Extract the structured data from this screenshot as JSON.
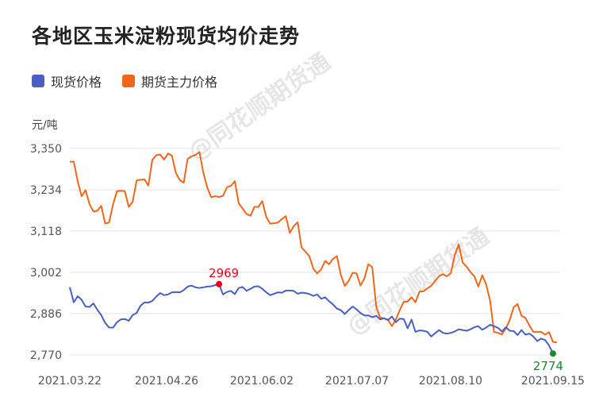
{
  "title": "各地区玉米淀粉现货均价走势",
  "unit_label": "元/吨",
  "watermark": "@同花顺期货通",
  "colors": {
    "spot": "#4a5fc1",
    "futures": "#f0661a",
    "max_marker": "#e8001c",
    "min_marker": "#1a8a2e"
  },
  "chart_data": {
    "type": "line",
    "legend": "top-left",
    "grid": true,
    "ylim": [
      2770,
      3350
    ],
    "y_ticks": [
      "3,350",
      "3,234",
      "3,118",
      "3,002",
      "2,886",
      "2,770"
    ],
    "x_ticks": [
      "2021.03.22",
      "2021.04.26",
      "2021.06.02",
      "2021.07.07",
      "2021.08.10",
      "2021.09.15"
    ],
    "annotations": [
      {
        "series": "现货价格",
        "index": 38,
        "label": "2969"
      },
      {
        "series": "现货价格",
        "index": 123,
        "label": "2774"
      }
    ],
    "series": [
      {
        "name": "现货价格",
        "color": "#4a5fc1",
        "values": [
          2960,
          2918,
          2935,
          2925,
          2906,
          2905,
          2915,
          2897,
          2882,
          2860,
          2847,
          2847,
          2862,
          2870,
          2871,
          2866,
          2882,
          2888,
          2908,
          2918,
          2917,
          2922,
          2934,
          2944,
          2938,
          2940,
          2946,
          2947,
          2946,
          2952,
          2962,
          2965,
          2960,
          2958,
          2960,
          2962,
          2963,
          2966,
          2969,
          2940,
          2947,
          2950,
          2941,
          2958,
          2961,
          2950,
          2956,
          2962,
          2963,
          2956,
          2946,
          2938,
          2942,
          2946,
          2945,
          2951,
          2951,
          2950,
          2942,
          2945,
          2944,
          2941,
          2936,
          2940,
          2928,
          2932,
          2921,
          2912,
          2900,
          2896,
          2885,
          2896,
          2906,
          2898,
          2888,
          2881,
          2881,
          2876,
          2880,
          2870,
          2873,
          2868,
          2878,
          2862,
          2872,
          2871,
          2845,
          2869,
          2835,
          2839,
          2838,
          2835,
          2822,
          2831,
          2840,
          2832,
          2830,
          2832,
          2836,
          2842,
          2840,
          2838,
          2842,
          2848,
          2851,
          2841,
          2847,
          2855,
          2851,
          2846,
          2836,
          2848,
          2838,
          2837,
          2826,
          2840,
          2827,
          2830,
          2822,
          2809,
          2816,
          2812,
          2797,
          2774
        ]
      },
      {
        "name": "期货主力价格",
        "color": "#f0661a",
        "values": [
          3313,
          3313,
          3258,
          3216,
          3233,
          3194,
          3173,
          3175,
          3189,
          3139,
          3142,
          3193,
          3230,
          3231,
          3230,
          3186,
          3200,
          3260,
          3262,
          3263,
          3246,
          3318,
          3331,
          3333,
          3319,
          3336,
          3330,
          3281,
          3261,
          3254,
          3321,
          3328,
          3332,
          3340,
          3282,
          3240,
          3213,
          3216,
          3214,
          3217,
          3241,
          3245,
          3258,
          3196,
          3181,
          3166,
          3161,
          3186,
          3186,
          3202,
          3158,
          3139,
          3140,
          3142,
          3152,
          3160,
          3113,
          3132,
          3143,
          3072,
          3060,
          3047,
          3012,
          2999,
          3011,
          3034,
          3025,
          3040,
          3048,
          2995,
          2964,
          2978,
          3001,
          2999,
          2965,
          2985,
          3025,
          3017,
          2906,
          2875,
          2873,
          2869,
          2851,
          2870,
          2896,
          2919,
          2920,
          2932,
          2918,
          2948,
          2949,
          2957,
          2964,
          2978,
          2991,
          2997,
          2991,
          3000,
          3050,
          3081,
          3030,
          3018,
          3003,
          2991,
          2962,
          2994,
          2968,
          2922,
          2835,
          2832,
          2828,
          2844,
          2868,
          2904,
          2913,
          2880,
          2874,
          2853,
          2835,
          2835,
          2835,
          2827,
          2834,
          2807,
          2805
        ]
      }
    ]
  }
}
